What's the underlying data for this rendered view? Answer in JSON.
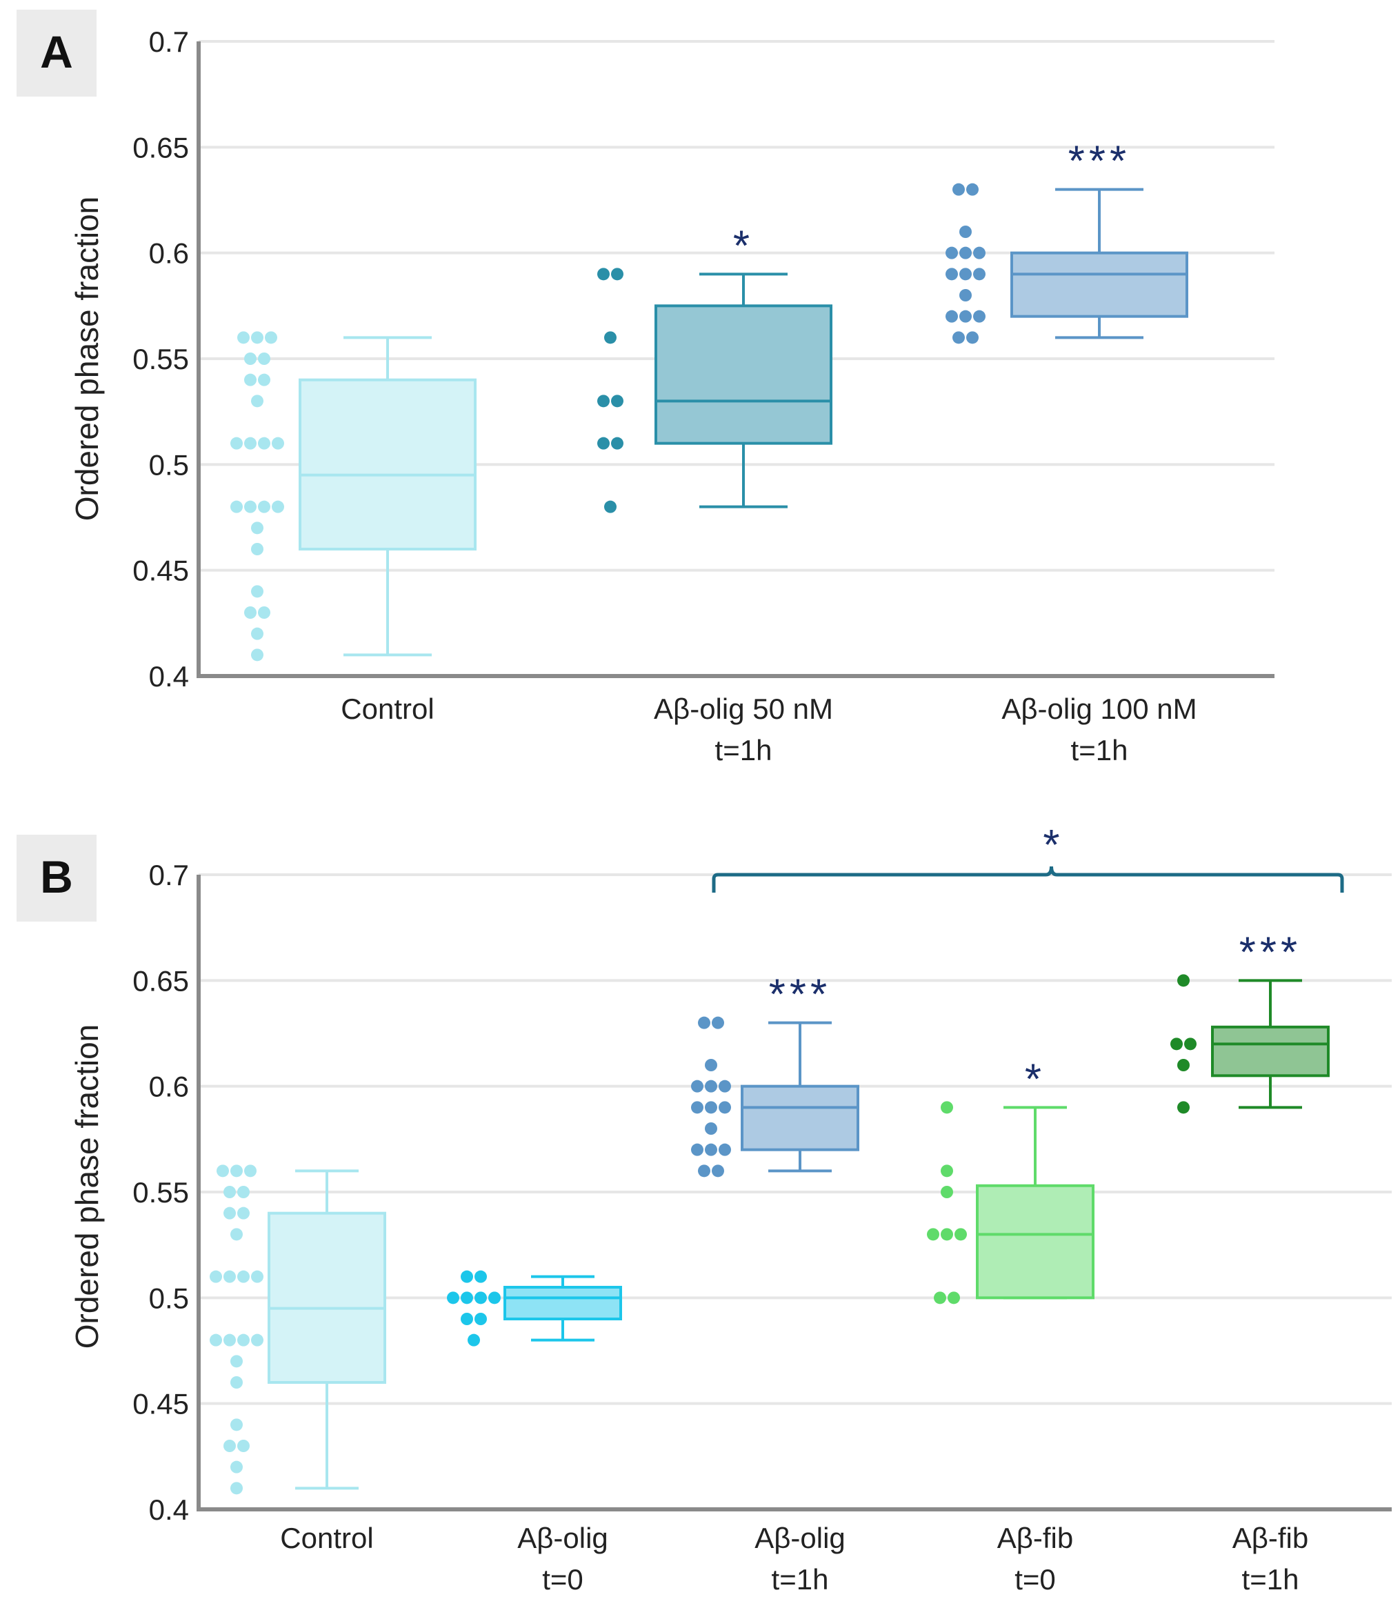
{
  "figure": {
    "panel_labels": [
      "A",
      "B"
    ],
    "ylabel": "Ordered phase fraction"
  },
  "colors": {
    "control": "#a8e6ef",
    "olig50": "#2a8fa8",
    "olig100": "#5b95c7",
    "olig_t0": "#1cc6ea",
    "fib_t0": "#5fdb6a",
    "fib_1h": "#1f8a28",
    "significance": "#1b2f6b",
    "bracket": "#1d6b86",
    "grid": "#e6e6e6",
    "axis": "#8a8a8a"
  },
  "chart_data": [
    {
      "type": "box",
      "panel": "A",
      "title": "",
      "xlabel": "",
      "ylabel": "Ordered phase fraction",
      "ylim": [
        0.4,
        0.7
      ],
      "yticks": [
        "0.4",
        "0.45",
        "0.5",
        "0.55",
        "0.6",
        "0.65",
        "0.7"
      ],
      "grid": true,
      "series": [
        {
          "name": "Control",
          "label_lines": [
            "Control"
          ],
          "color": "#a8e6ef",
          "min": 0.41,
          "q1": 0.46,
          "median": 0.495,
          "q3": 0.54,
          "max": 0.56,
          "significance": "",
          "points": [
            0.56,
            0.56,
            0.56,
            0.55,
            0.55,
            0.54,
            0.54,
            0.53,
            0.51,
            0.51,
            0.51,
            0.51,
            0.48,
            0.48,
            0.48,
            0.48,
            0.47,
            0.46,
            0.44,
            0.43,
            0.43,
            0.42,
            0.41
          ]
        },
        {
          "name": "Aβ-olig 50 nM t=1h",
          "label_lines": [
            "Aβ-olig 50 nM",
            "t=1h"
          ],
          "color": "#2a8fa8",
          "min": 0.48,
          "q1": 0.51,
          "median": 0.53,
          "q3": 0.575,
          "max": 0.59,
          "significance": "*",
          "points": [
            0.59,
            0.59,
            0.56,
            0.53,
            0.53,
            0.51,
            0.51,
            0.48
          ]
        },
        {
          "name": "Aβ-olig 100 nM t=1h",
          "label_lines": [
            "Aβ-olig 100 nM",
            "t=1h"
          ],
          "color": "#5b95c7",
          "min": 0.56,
          "q1": 0.57,
          "median": 0.59,
          "q3": 0.6,
          "max": 0.63,
          "significance": "***",
          "points": [
            0.63,
            0.63,
            0.61,
            0.6,
            0.6,
            0.6,
            0.59,
            0.59,
            0.59,
            0.58,
            0.57,
            0.57,
            0.57,
            0.56,
            0.56
          ]
        }
      ]
    },
    {
      "type": "box",
      "panel": "B",
      "title": "",
      "xlabel": "",
      "ylabel": "Ordered phase fraction",
      "ylim": [
        0.4,
        0.7
      ],
      "yticks": [
        "0.4",
        "0.45",
        "0.5",
        "0.55",
        "0.6",
        "0.65",
        "0.7"
      ],
      "grid": true,
      "bracket": {
        "from": 2,
        "to": 4,
        "significance": "*"
      },
      "series": [
        {
          "name": "Control",
          "label_lines": [
            "Control"
          ],
          "color": "#a8e6ef",
          "min": 0.41,
          "q1": 0.46,
          "median": 0.495,
          "q3": 0.54,
          "max": 0.56,
          "significance": "",
          "points": [
            0.56,
            0.56,
            0.56,
            0.55,
            0.55,
            0.54,
            0.54,
            0.53,
            0.51,
            0.51,
            0.51,
            0.51,
            0.48,
            0.48,
            0.48,
            0.48,
            0.47,
            0.46,
            0.44,
            0.43,
            0.43,
            0.42,
            0.41
          ]
        },
        {
          "name": "Aβ-olig t=0",
          "label_lines": [
            "Aβ-olig",
            "t=0"
          ],
          "color": "#1cc6ea",
          "min": 0.48,
          "q1": 0.49,
          "median": 0.5,
          "q3": 0.505,
          "max": 0.51,
          "significance": "",
          "points": [
            0.51,
            0.51,
            0.5,
            0.5,
            0.5,
            0.5,
            0.49,
            0.49,
            0.48
          ]
        },
        {
          "name": "Aβ-olig t=1h",
          "label_lines": [
            "Aβ-olig",
            "t=1h"
          ],
          "color": "#5b95c7",
          "min": 0.56,
          "q1": 0.57,
          "median": 0.59,
          "q3": 0.6,
          "max": 0.63,
          "significance": "***",
          "points": [
            0.63,
            0.63,
            0.61,
            0.6,
            0.6,
            0.6,
            0.59,
            0.59,
            0.59,
            0.58,
            0.57,
            0.57,
            0.57,
            0.56,
            0.56
          ]
        },
        {
          "name": "Aβ-fib t=0",
          "label_lines": [
            "Aβ-fib",
            "t=0"
          ],
          "color": "#5fdb6a",
          "min": 0.5,
          "q1": 0.5,
          "median": 0.53,
          "q3": 0.553,
          "max": 0.59,
          "significance": "*",
          "points": [
            0.59,
            0.56,
            0.55,
            0.53,
            0.53,
            0.53,
            0.5,
            0.5
          ]
        },
        {
          "name": "Aβ-fib t=1h",
          "label_lines": [
            "Aβ-fib",
            "t=1h"
          ],
          "color": "#1f8a28",
          "min": 0.59,
          "q1": 0.605,
          "median": 0.62,
          "q3": 0.628,
          "max": 0.65,
          "significance": "***",
          "points": [
            0.65,
            0.62,
            0.62,
            0.61,
            0.59
          ]
        }
      ]
    }
  ]
}
